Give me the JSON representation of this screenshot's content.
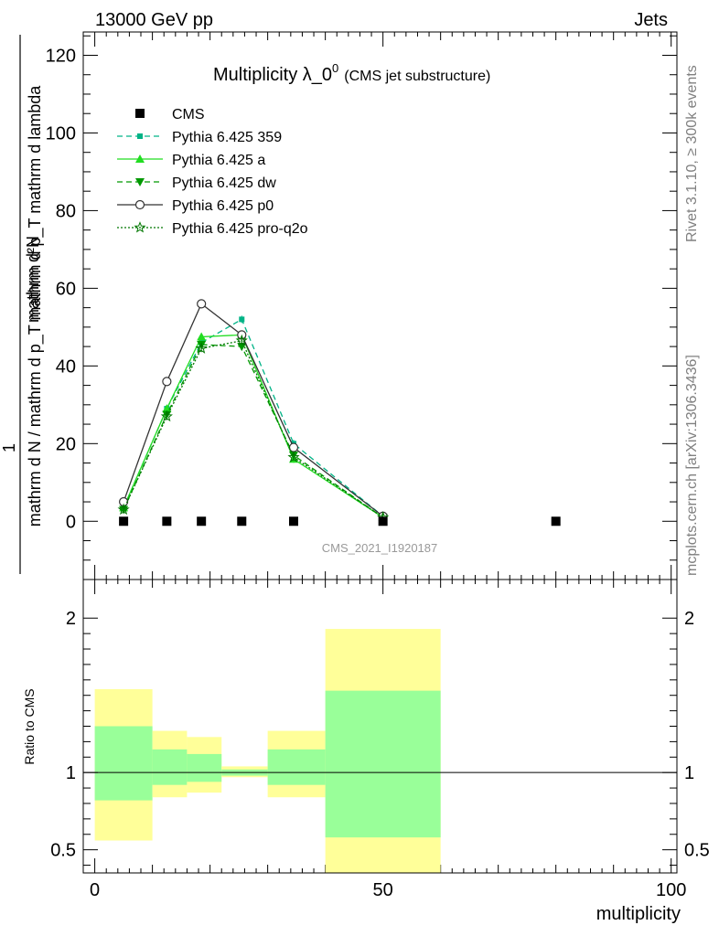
{
  "header": {
    "left": "13000 GeV pp",
    "right": "Jets"
  },
  "side_labels": {
    "rivet": "Rivet 3.1.10, ≥ 300k events",
    "mcplots": "mcplots.cern.ch [arXiv:1306.3436]"
  },
  "chart_data": [
    {
      "type": "line",
      "title": "Multiplicity λ_0",
      "title_sup": "0",
      "subtitle": "(CMS jet substructure)",
      "watermark": "CMS_2021_I1920187",
      "ylabel_top": "mathrm d²N",
      "ylabel_num": "1",
      "ylabel_den": "mathrm d N / mathrm d p_T mathrm d p_T mathrm d lambda",
      "xlim": [
        -2,
        101
      ],
      "ylim": [
        -15,
        126
      ],
      "yticks": [
        0,
        20,
        40,
        60,
        80,
        100,
        120
      ],
      "legend_position": "top-left",
      "data_points": {
        "name": "CMS",
        "x": [
          5,
          12.5,
          18.5,
          25.5,
          34.5,
          50,
          80
        ],
        "y": [
          0,
          0,
          0,
          0,
          0,
          0,
          0
        ]
      },
      "series": [
        {
          "name": "Pythia 6.425 359",
          "color": "#00b386",
          "dash": "6,4",
          "marker": "square-small",
          "x": [
            5,
            12.5,
            18.5,
            25.5,
            34.5,
            50
          ],
          "y": [
            3.5,
            29,
            46,
            52,
            20,
            1.3
          ]
        },
        {
          "name": "Pythia 6.425 a",
          "color": "#22dd22",
          "dash": "",
          "marker": "triangle-up",
          "x": [
            5,
            12.5,
            18.5,
            25.5,
            34.5,
            50
          ],
          "y": [
            3.5,
            29,
            47.5,
            48,
            16,
            1
          ]
        },
        {
          "name": "Pythia 6.425 dw",
          "color": "#009900",
          "dash": "6,4",
          "marker": "triangle-down",
          "x": [
            5,
            12.5,
            18.5,
            25.5,
            34.5,
            50
          ],
          "y": [
            3,
            27.5,
            45.5,
            45,
            17,
            1
          ]
        },
        {
          "name": "Pythia 6.425 p0",
          "color": "#333333",
          "dash": "",
          "marker": "circle-open",
          "x": [
            5,
            12.5,
            18.5,
            25.5,
            34.5,
            50
          ],
          "y": [
            5,
            36,
            56,
            48,
            19,
            1.3
          ]
        },
        {
          "name": "Pythia 6.425 pro-q2o",
          "color": "#007700",
          "dash": "2,2",
          "marker": "star-open",
          "x": [
            5,
            12.5,
            18.5,
            25.5,
            34.5,
            50
          ],
          "y": [
            3,
            27,
            44.5,
            46.5,
            16.5,
            1
          ]
        }
      ]
    },
    {
      "type": "area",
      "ylabel": "Ratio to CMS",
      "xlabel": "multiplicity",
      "xlim": [
        -2,
        101
      ],
      "ylim": [
        0.35,
        2.25
      ],
      "yticks": [
        0.5,
        1,
        2
      ],
      "xticks": [
        0,
        50,
        100
      ],
      "bands": [
        {
          "x0": 0,
          "x1": 10,
          "inner": [
            0.82,
            1.3
          ],
          "outer": [
            0.56,
            1.54
          ]
        },
        {
          "x0": 10,
          "x1": 16,
          "inner": [
            0.92,
            1.15
          ],
          "outer": [
            0.84,
            1.27
          ]
        },
        {
          "x0": 16,
          "x1": 22,
          "inner": [
            0.94,
            1.12
          ],
          "outer": [
            0.87,
            1.23
          ]
        },
        {
          "x0": 22,
          "x1": 30,
          "inner": [
            0.98,
            1.02
          ],
          "outer": [
            0.97,
            1.04
          ]
        },
        {
          "x0": 30,
          "x1": 40,
          "inner": [
            0.92,
            1.15
          ],
          "outer": [
            0.84,
            1.27
          ]
        },
        {
          "x0": 40,
          "x1": 60,
          "inner": [
            0.58,
            1.53
          ],
          "outer": [
            0.33,
            1.93
          ]
        }
      ],
      "colors": {
        "inner": "#99ff99",
        "outer": "#ffff99"
      }
    }
  ]
}
